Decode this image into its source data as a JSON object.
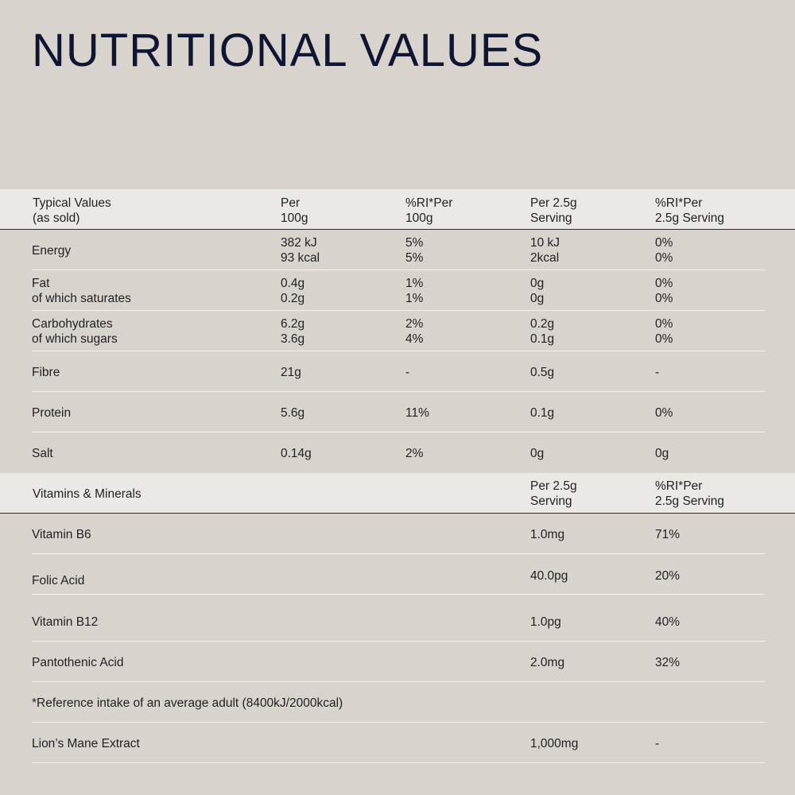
{
  "title": "NUTRITIONAL VALUES",
  "nutrition_header": {
    "col1": "Typical Values\n(as sold)",
    "col2": "Per\n100g",
    "col3": "%RI*Per\n100g",
    "col4": "Per 2.5g\nServing",
    "col5": "%RI*Per\n2.5g Serving"
  },
  "nutrition_rows": [
    {
      "name": "Energy",
      "per100": "382 kJ\n93 kcal",
      "ri100": "5%\n5%",
      "perServing": "10 kJ\n2kcal",
      "riServing": "0%\n0%"
    },
    {
      "name": "Fat\nof which saturates",
      "per100": "0.4g\n0.2g",
      "ri100": "1%\n1%",
      "perServing": "0g\n0g",
      "riServing": "0%\n0%"
    },
    {
      "name": "Carbohydrates\nof which sugars",
      "per100": "6.2g\n3.6g",
      "ri100": "2%\n4%",
      "perServing": "0.2g\n0.1g",
      "riServing": "0%\n0%"
    },
    {
      "name": "Fibre",
      "per100": "21g",
      "ri100": "-",
      "perServing": "0.5g",
      "riServing": "-"
    },
    {
      "name": "Protein",
      "per100": "5.6g",
      "ri100": "11%",
      "perServing": "0.1g",
      "riServing": "0%"
    },
    {
      "name": "Salt",
      "per100": "0.14g",
      "ri100": "2%",
      "perServing": "0g",
      "riServing": "0g"
    }
  ],
  "vitamins_header": {
    "col1": "Vitamins & Minerals",
    "col4": "Per 2.5g\nServing",
    "col5": "%RI*Per\n2.5g Serving"
  },
  "vitamin_rows": [
    {
      "name": "Vitamin B6",
      "perServing": "1.0mg",
      "riServing": "71%"
    },
    {
      "name": "Folic Acid",
      "perServing": "40.0pg",
      "riServing": "20%"
    },
    {
      "name": "Vitamin B12",
      "perServing": "1.0pg",
      "riServing": "40%"
    },
    {
      "name": "Pantothenic Acid",
      "perServing": "2.0mg",
      "riServing": "32%"
    }
  ],
  "footnote": "*Reference intake of an average adult (8400kJ/2000kcal)",
  "extract": {
    "name": "Lion’s Mane Extract",
    "perServing": "1,000mg",
    "riServing": "-"
  }
}
